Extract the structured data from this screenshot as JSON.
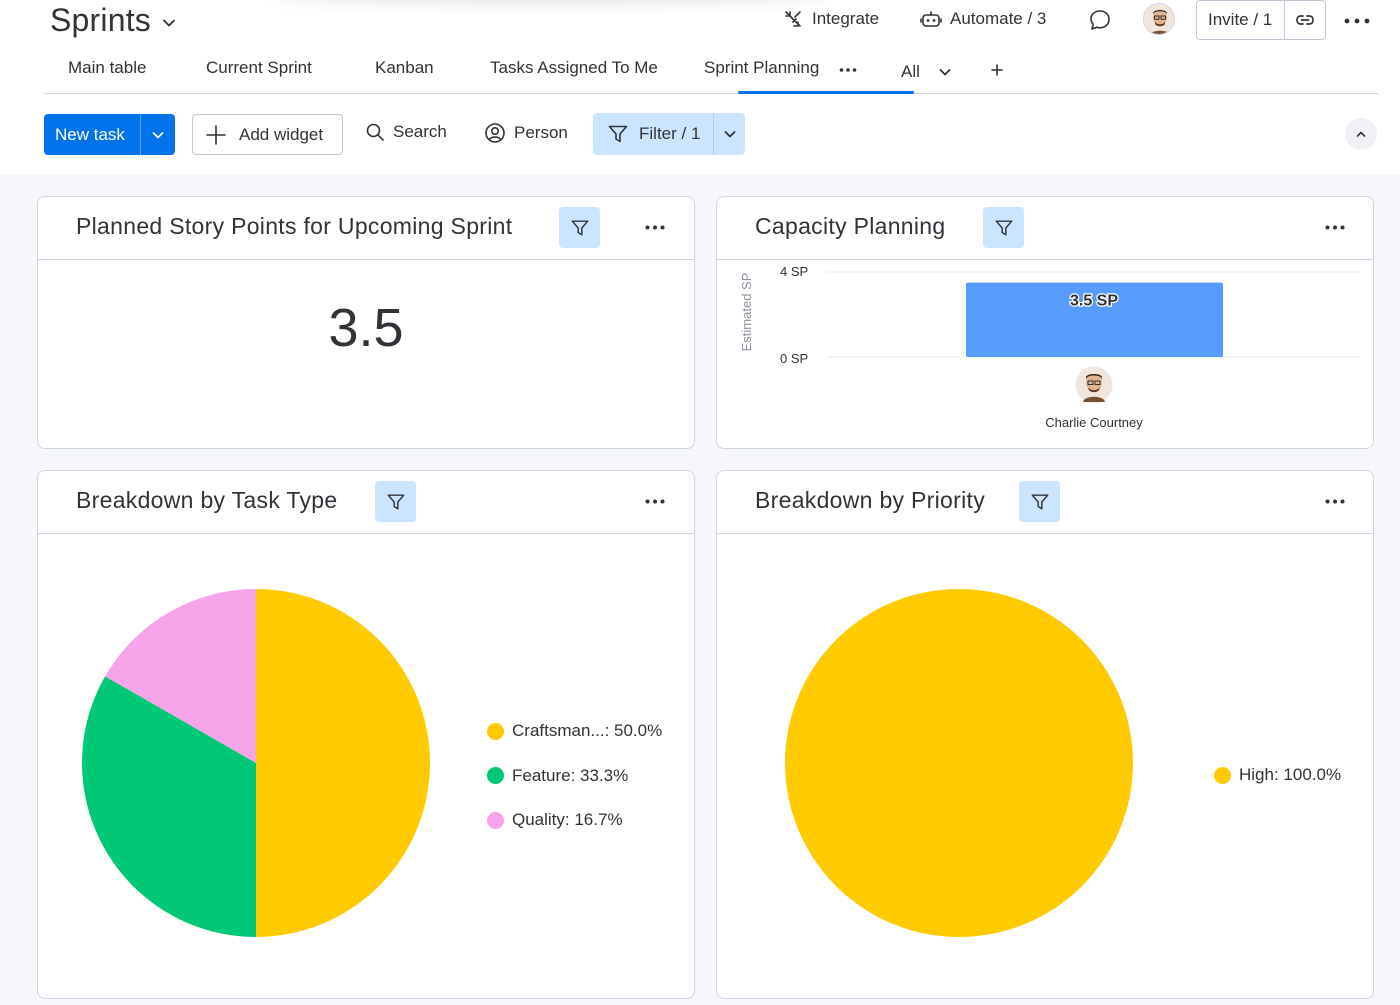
{
  "board": {
    "title": "Sprints"
  },
  "header_actions": {
    "integrate_label": "Integrate",
    "automate_label": "Automate / 3",
    "invite_label": "Invite / 1"
  },
  "tabs": [
    {
      "label": "Main table"
    },
    {
      "label": "Current Sprint"
    },
    {
      "label": "Kanban"
    },
    {
      "label": "Tasks Assigned To Me"
    },
    {
      "label": "Sprint Planning",
      "active": true
    },
    {
      "label": "All"
    }
  ],
  "toolbar": {
    "new_task_label": "New task",
    "add_widget_label": "Add widget",
    "search_label": "Search",
    "person_label": "Person",
    "filter_label": "Filter / 1"
  },
  "widgets": {
    "story_points": {
      "title": "Planned Story Points for Upcoming Sprint",
      "value": "3.5"
    },
    "capacity": {
      "title": "Capacity Planning",
      "y_axis_label": "Estimated SP",
      "y_tick_top": "4 SP",
      "y_tick_bottom": "0 SP",
      "bar_label": "3.5 SP",
      "person": "Charlie Courtney"
    },
    "task_type": {
      "title": "Breakdown by Task Type"
    },
    "priority": {
      "title": "Breakdown by Priority"
    }
  },
  "colors": {
    "primary": "#0073ea",
    "filter_bg": "#cce5ff",
    "bar": "#579bfc",
    "craftsmanship": "#ffcb00",
    "feature": "#00c875",
    "quality": "#f6a4ea",
    "high": "#ffcb00"
  },
  "chart_data": [
    {
      "type": "bar",
      "title": "Capacity Planning",
      "categories": [
        "Charlie Courtney"
      ],
      "values": [
        3.5
      ],
      "ylabel": "Estimated SP",
      "ylim": [
        0,
        4
      ],
      "data_labels": [
        "3.5 SP"
      ]
    },
    {
      "type": "pie",
      "title": "Breakdown by Task Type",
      "categories": [
        "Craftsman...",
        "Feature",
        "Quality"
      ],
      "values": [
        50.0,
        33.3,
        16.7
      ],
      "legend_labels": [
        "Craftsman...: 50.0%",
        "Feature: 33.3%",
        "Quality: 16.7%"
      ],
      "colors": [
        "#ffcb00",
        "#00c875",
        "#f6a4ea"
      ]
    },
    {
      "type": "pie",
      "title": "Breakdown by Priority",
      "categories": [
        "High"
      ],
      "values": [
        100.0
      ],
      "legend_labels": [
        "High: 100.0%"
      ],
      "colors": [
        "#ffcb00"
      ]
    }
  ]
}
